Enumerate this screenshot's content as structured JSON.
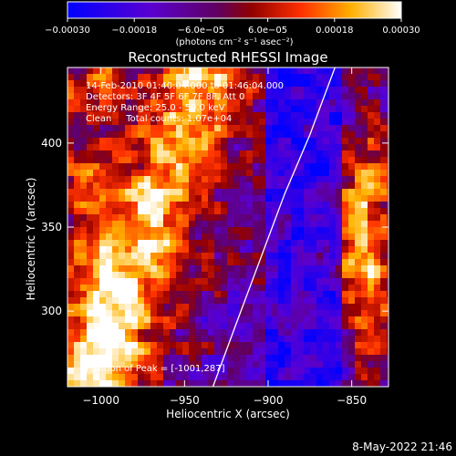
{
  "chart_data": {
    "type": "heatmap",
    "title": "Reconstructed RHESSI Image",
    "xlabel": "Heliocentric X (arcsec)",
    "ylabel": "Heliocentric Y (arcsec)",
    "xlim": [
      -1020,
      -828
    ],
    "ylim": [
      255,
      445
    ],
    "x_ticks": [
      -1000,
      -950,
      -900,
      -850
    ],
    "x_tick_labels": [
      "−1000",
      "−950",
      "−900",
      "−850"
    ],
    "y_ticks": [
      300,
      350,
      400
    ],
    "y_tick_labels": [
      "300",
      "350",
      "400"
    ],
    "colorbar": {
      "min": -0.0003,
      "max": 0.0003,
      "ticks": [
        -0.0003,
        -0.00018,
        -6e-05,
        6e-05,
        0.00018,
        0.0003
      ],
      "tick_labels": [
        "−0.00030",
        "−0.00018",
        "−6.0e−05",
        "6.0e−05",
        "0.00018",
        "0.00030"
      ],
      "unit_text": "(photons cm⁻² s⁻¹ asec⁻²)",
      "colors": [
        "#0000ff",
        "#7a00c8",
        "#b00000",
        "#ff4000",
        "#ffc000",
        "#ffffff"
      ]
    },
    "info_lines": [
      "14-Feb-2010 01:40:04.000 to 01:46:04.000",
      "Detectors: 3F 4F 5F 6F 7F 8F, Att 0",
      "Energy Range: 25.0 - 50.0 keV",
      "Clean     Total counts: 1.07e+04"
    ],
    "peak_label": "Position of Peak = [-1001,287]",
    "peak_position": [
      -1001,
      287
    ],
    "limb_curve": [
      [
        -933,
        255
      ],
      [
        -920,
        290
      ],
      [
        -905,
        330
      ],
      [
        -890,
        370
      ],
      [
        -875,
        405
      ],
      [
        -860,
        445
      ]
    ],
    "field_description": "bright emission band along left; blue/purple disk region right; bright patch far right"
  },
  "footer": {
    "date": "8-May-2022 21:46"
  }
}
